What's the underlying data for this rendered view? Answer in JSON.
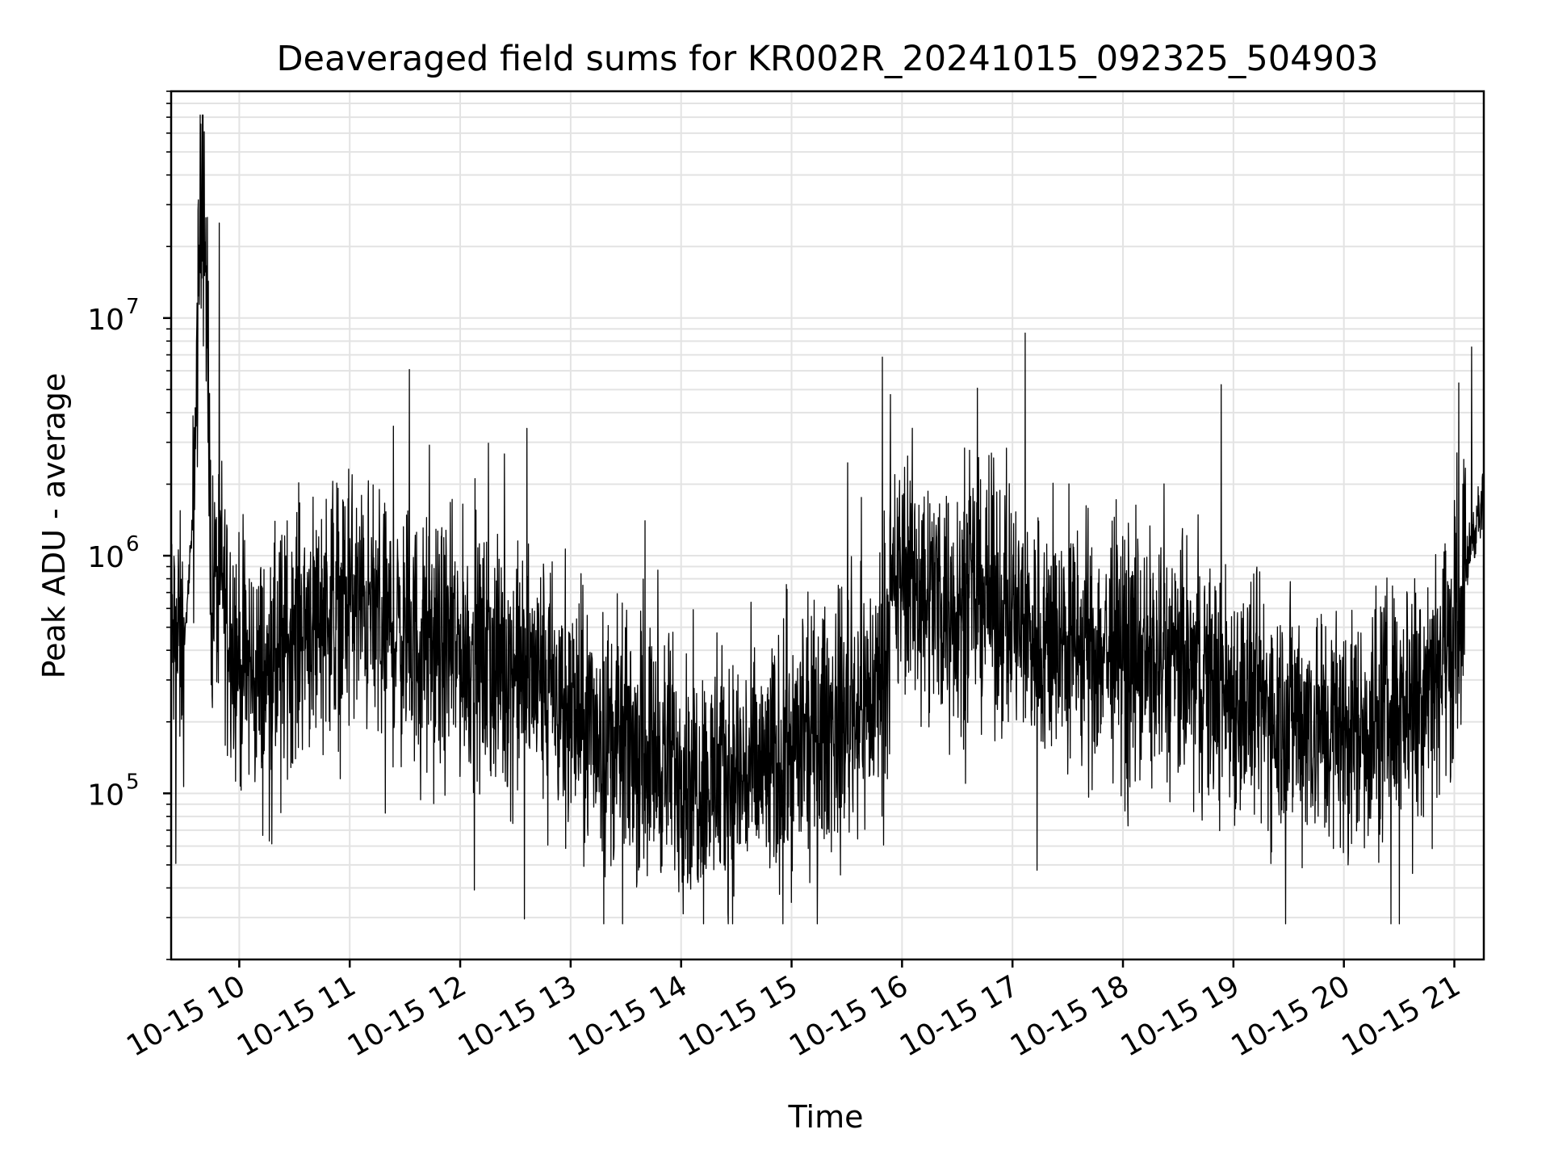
{
  "chart_data": {
    "type": "line",
    "title": "Deaveraged field sums for KR002R_20241015_092325_504903",
    "xlabel": "Time",
    "ylabel": "Peak ADU - average",
    "yscale": "log",
    "ylim": [
      20000,
      90000000
    ],
    "xlim": [
      "2024-10-15 09:23",
      "2024-10-15 21:16"
    ],
    "grid": true,
    "x_tick_labels": [
      "10-15 10",
      "10-15 11",
      "10-15 12",
      "10-15 13",
      "10-15 14",
      "10-15 15",
      "10-15 16",
      "10-15 17",
      "10-15 18",
      "10-15 19",
      "10-15 20",
      "10-15 21"
    ],
    "y_tick_labels": [
      {
        "base": "10",
        "exp": "5",
        "value": 100000
      },
      {
        "base": "10",
        "exp": "6",
        "value": 1000000
      },
      {
        "base": "10",
        "exp": "7",
        "value": 10000000
      }
    ],
    "series_color": "#000000",
    "x": [
      "09:23",
      "09:30",
      "09:35",
      "09:40",
      "09:45",
      "09:50",
      "10:00",
      "10:15",
      "10:30",
      "10:45",
      "11:00",
      "11:15",
      "11:30",
      "11:45",
      "12:00",
      "12:15",
      "12:30",
      "12:45",
      "13:00",
      "13:15",
      "13:30",
      "13:45",
      "14:00",
      "14:15",
      "14:30",
      "14:45",
      "15:00",
      "15:15",
      "15:30",
      "15:45",
      "16:00",
      "16:15",
      "16:30",
      "16:45",
      "17:00",
      "17:15",
      "17:30",
      "17:45",
      "18:00",
      "18:15",
      "18:30",
      "18:45",
      "19:00",
      "19:15",
      "19:30",
      "19:45",
      "20:00",
      "20:15",
      "20:30",
      "20:45",
      "21:00",
      "21:10",
      "21:16"
    ],
    "y": [
      450000,
      400000,
      1500000,
      60000000,
      700000,
      800000,
      350000,
      300000,
      500000,
      600000,
      650000,
      550000,
      450000,
      400000,
      400000,
      350000,
      330000,
      300000,
      220000,
      180000,
      160000,
      150000,
      130000,
      110000,
      120000,
      120000,
      150000,
      180000,
      220000,
      260000,
      900000,
      700000,
      650000,
      700000,
      550000,
      450000,
      420000,
      400000,
      400000,
      350000,
      330000,
      300000,
      260000,
      230000,
      220000,
      200000,
      180000,
      200000,
      250000,
      330000,
      450000,
      1300000,
      1600000
    ]
  }
}
